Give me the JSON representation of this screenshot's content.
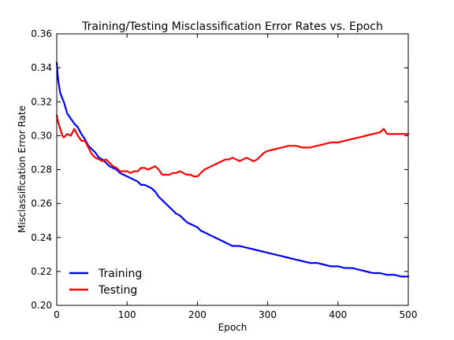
{
  "chart_data": {
    "type": "line",
    "title": "Training/Testing Misclassification Error Rates vs. Epoch",
    "xlabel": "Epoch",
    "ylabel": "Misclassification Error Rate",
    "xlim": [
      0,
      500
    ],
    "ylim": [
      0.2,
      0.36
    ],
    "xticks": [
      "0",
      "100",
      "200",
      "300",
      "400",
      "500"
    ],
    "yticks": [
      "0.20",
      "0.22",
      "0.24",
      "0.26",
      "0.28",
      "0.30",
      "0.32",
      "0.34",
      "0.36"
    ],
    "grid": false,
    "legend_position": "lower-left",
    "series": [
      {
        "name": "Training",
        "color": "#0000ff",
        "x": [
          0,
          2,
          5,
          10,
          15,
          20,
          25,
          30,
          35,
          40,
          45,
          50,
          55,
          60,
          65,
          70,
          75,
          80,
          85,
          90,
          95,
          100,
          105,
          110,
          115,
          120,
          125,
          130,
          135,
          140,
          145,
          150,
          155,
          160,
          165,
          170,
          175,
          180,
          185,
          190,
          195,
          200,
          205,
          210,
          215,
          220,
          225,
          230,
          240,
          250,
          260,
          270,
          280,
          290,
          300,
          310,
          320,
          330,
          340,
          350,
          360,
          370,
          380,
          390,
          400,
          410,
          420,
          430,
          440,
          450,
          460,
          470,
          480,
          490,
          500
        ],
        "values": [
          0.343,
          0.333,
          0.325,
          0.32,
          0.313,
          0.31,
          0.307,
          0.305,
          0.301,
          0.298,
          0.294,
          0.292,
          0.29,
          0.287,
          0.286,
          0.284,
          0.282,
          0.281,
          0.28,
          0.278,
          0.277,
          0.276,
          0.275,
          0.274,
          0.273,
          0.271,
          0.271,
          0.27,
          0.269,
          0.267,
          0.264,
          0.262,
          0.26,
          0.258,
          0.256,
          0.254,
          0.253,
          0.251,
          0.249,
          0.248,
          0.247,
          0.246,
          0.244,
          0.243,
          0.242,
          0.241,
          0.24,
          0.239,
          0.237,
          0.235,
          0.235,
          0.234,
          0.233,
          0.232,
          0.231,
          0.23,
          0.229,
          0.228,
          0.227,
          0.226,
          0.225,
          0.225,
          0.224,
          0.223,
          0.223,
          0.222,
          0.222,
          0.221,
          0.22,
          0.219,
          0.219,
          0.218,
          0.218,
          0.217,
          0.217
        ]
      },
      {
        "name": "Testing",
        "color": "#ff0000",
        "x": [
          0,
          2,
          5,
          8,
          10,
          15,
          20,
          25,
          30,
          35,
          40,
          45,
          50,
          55,
          60,
          65,
          70,
          75,
          80,
          85,
          90,
          95,
          100,
          105,
          110,
          115,
          120,
          125,
          130,
          135,
          140,
          145,
          150,
          155,
          160,
          165,
          170,
          175,
          180,
          185,
          190,
          195,
          200,
          205,
          210,
          215,
          220,
          225,
          230,
          235,
          240,
          245,
          250,
          255,
          260,
          265,
          270,
          275,
          280,
          285,
          290,
          295,
          300,
          310,
          320,
          330,
          340,
          350,
          360,
          370,
          380,
          390,
          400,
          410,
          420,
          430,
          440,
          450,
          460,
          465,
          470,
          480,
          490,
          500
        ],
        "values": [
          0.312,
          0.308,
          0.304,
          0.3,
          0.299,
          0.301,
          0.3,
          0.304,
          0.3,
          0.297,
          0.297,
          0.293,
          0.289,
          0.287,
          0.286,
          0.285,
          0.286,
          0.284,
          0.282,
          0.281,
          0.279,
          0.279,
          0.279,
          0.278,
          0.279,
          0.279,
          0.281,
          0.281,
          0.28,
          0.281,
          0.282,
          0.28,
          0.277,
          0.277,
          0.277,
          0.278,
          0.278,
          0.279,
          0.278,
          0.277,
          0.277,
          0.276,
          0.276,
          0.278,
          0.28,
          0.281,
          0.282,
          0.283,
          0.284,
          0.285,
          0.286,
          0.286,
          0.287,
          0.286,
          0.285,
          0.286,
          0.287,
          0.286,
          0.285,
          0.286,
          0.288,
          0.29,
          0.291,
          0.292,
          0.293,
          0.294,
          0.294,
          0.293,
          0.293,
          0.294,
          0.295,
          0.296,
          0.296,
          0.297,
          0.298,
          0.299,
          0.3,
          0.301,
          0.302,
          0.304,
          0.301,
          0.301,
          0.301,
          0.301
        ]
      }
    ]
  }
}
